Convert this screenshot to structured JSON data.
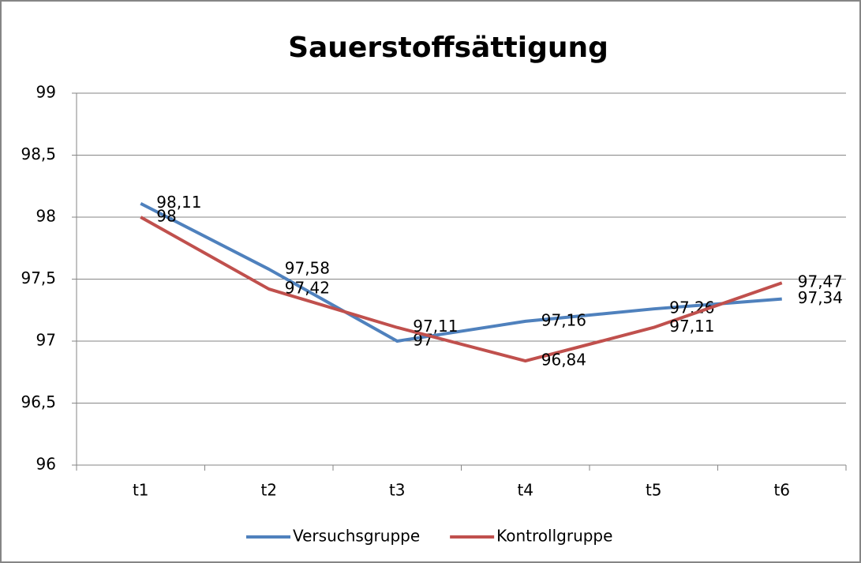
{
  "chart_data": {
    "type": "line",
    "title": "Sauerstoffsättigung",
    "categories": [
      "t1",
      "t2",
      "t3",
      "t4",
      "t5",
      "t6"
    ],
    "series": [
      {
        "name": "Versuchsgruppe",
        "color": "#4f81bd",
        "values": [
          98.11,
          97.58,
          97,
          97.16,
          97.26,
          97.34
        ],
        "value_labels": [
          "98,11",
          "97,58",
          "97",
          "97,16",
          "97,26",
          "97,34"
        ]
      },
      {
        "name": "Kontrollgruppe",
        "color": "#c0504d",
        "values": [
          98,
          97.42,
          97.11,
          96.84,
          97.11,
          97.47
        ],
        "value_labels": [
          "98",
          "97,42",
          "97,11",
          "96,84",
          "97,11",
          "97,47"
        ]
      }
    ],
    "ylim": [
      96,
      99
    ],
    "yticks": [
      96,
      {
        "value": 96.5,
        "label": "96,5"
      },
      97,
      {
        "value": 97.5,
        "label": "97,5"
      },
      98,
      {
        "value": 98.5,
        "label": "98,5"
      },
      99
    ],
    "grid": true,
    "legend": "bottom"
  }
}
